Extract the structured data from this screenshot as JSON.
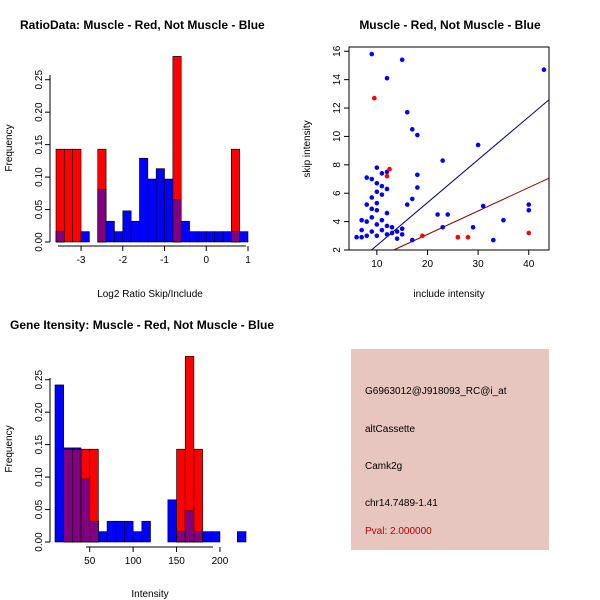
{
  "colors": {
    "muscle": "#ff0000",
    "not_muscle": "#0000ff",
    "overlap": "#800080",
    "panel_bg": "#e6c6bf",
    "pval_text": "#c00000"
  },
  "chart_data": [
    {
      "id": "ratio",
      "type": "histogram",
      "title": "RatioData: Muscle - Red, Not Muscle - Blue",
      "xlabel": "Log2 Ratio Skip/Include",
      "ylabel": "Frequency",
      "xlim": [
        -3.6,
        1.0
      ],
      "ylim": [
        0,
        0.285
      ],
      "xticks": [
        "-3",
        "-2",
        "-1",
        "0",
        "1"
      ],
      "yticks": [
        "0.00",
        "0.05",
        "0.10",
        "0.15",
        "0.20",
        "0.25"
      ],
      "bin_start": -3.6,
      "bin_width": 0.2,
      "series": [
        {
          "name": "Not Muscle",
          "color": "#0000ff",
          "values": [
            0.016,
            0.0,
            0.0,
            0.016,
            0.0,
            0.081,
            0.032,
            0.016,
            0.048,
            0.032,
            0.129,
            0.097,
            0.113,
            0.097,
            0.065,
            0.032,
            0.016,
            0.016,
            0.016,
            0.016,
            0.016,
            0.016,
            0.016
          ]
        },
        {
          "name": "Muscle",
          "color": "#ff0000",
          "values": [
            0.143,
            0.143,
            0.143,
            0.0,
            0.0,
            0.143,
            0.0,
            0.0,
            0.0,
            0.0,
            0.0,
            0.0,
            0.0,
            0.0,
            0.286,
            0.0,
            0.0,
            0.0,
            0.0,
            0.0,
            0.0,
            0.143,
            0.0
          ]
        }
      ]
    },
    {
      "id": "scatter",
      "type": "scatter",
      "title": "Muscle - Red, Not Muscle - Blue",
      "xlabel": "include intensity",
      "ylabel": "skip intensity",
      "xlim": [
        4.5,
        44
      ],
      "ylim": [
        2,
        16.3
      ],
      "xticks": [
        10,
        20,
        30,
        40
      ],
      "yticks": [
        2,
        4,
        6,
        8,
        10,
        12,
        14,
        16
      ],
      "series": [
        {
          "name": "Not Muscle",
          "color": "#0000ff",
          "points": [
            [
              9,
              15.8
            ],
            [
              15,
              15.4
            ],
            [
              12,
              14.1
            ],
            [
              16,
              11.7
            ],
            [
              17,
              10.5
            ],
            [
              18,
              10.1
            ],
            [
              30,
              9.4
            ],
            [
              23,
              8.3
            ],
            [
              8,
              7.1
            ],
            [
              9,
              7.0
            ],
            [
              10,
              7.8
            ],
            [
              11,
              7.4
            ],
            [
              12,
              7.5
            ],
            [
              18,
              7.3
            ],
            [
              10,
              6.7
            ],
            [
              11,
              6.5
            ],
            [
              12,
              6.3
            ],
            [
              18,
              6.4
            ],
            [
              10,
              6.1
            ],
            [
              11,
              5.9
            ],
            [
              9,
              5.7
            ],
            [
              10,
              5.3
            ],
            [
              17,
              5.6
            ],
            [
              16,
              5.2
            ],
            [
              31,
              5.1
            ],
            [
              40,
              5.2
            ],
            [
              8,
              5.2
            ],
            [
              9,
              4.9
            ],
            [
              10,
              4.8
            ],
            [
              12,
              4.6
            ],
            [
              22,
              4.5
            ],
            [
              24,
              4.5
            ],
            [
              40,
              4.8
            ],
            [
              35,
              4.1
            ],
            [
              7,
              4.1
            ],
            [
              8,
              4.0
            ],
            [
              9,
              4.3
            ],
            [
              11,
              4.1
            ],
            [
              10,
              3.8
            ],
            [
              12,
              3.7
            ],
            [
              13,
              3.6
            ],
            [
              15,
              3.5
            ],
            [
              23,
              3.6
            ],
            [
              29,
              3.6
            ],
            [
              7,
              3.4
            ],
            [
              9,
              3.3
            ],
            [
              11,
              3.4
            ],
            [
              13,
              3.2
            ],
            [
              14,
              3.3
            ],
            [
              15,
              3.1
            ],
            [
              6,
              2.9
            ],
            [
              7,
              2.9
            ],
            [
              8,
              3.0
            ],
            [
              10,
              3.0
            ],
            [
              12,
              3.1
            ],
            [
              14,
              2.8
            ],
            [
              17,
              2.7
            ],
            [
              26,
              2.9
            ],
            [
              33,
              2.7
            ],
            [
              43,
              14.7
            ]
          ]
        },
        {
          "name": "Muscle",
          "color": "#ff0000",
          "points": [
            [
              9.5,
              12.7
            ],
            [
              12.5,
              7.7
            ],
            [
              12,
              7.2
            ],
            [
              19,
              3.0
            ],
            [
              26,
              2.9
            ],
            [
              28,
              2.9
            ],
            [
              40,
              3.2
            ]
          ]
        }
      ],
      "lines": [
        {
          "color": "#00008b",
          "slope": 0.302,
          "intercept": -0.7
        },
        {
          "color": "#8b0000",
          "slope": 0.165,
          "intercept": -0.2
        }
      ]
    },
    {
      "id": "intensity",
      "type": "histogram",
      "title": "Gene Itensity: Muscle - Red, Not Muscle - Blue",
      "xlabel": "Intensity",
      "ylabel": "Frequency",
      "xlim": [
        10,
        230
      ],
      "ylim": [
        0,
        0.285
      ],
      "xticks": [
        "50",
        "100",
        "150",
        "200"
      ],
      "yticks": [
        "0.00",
        "0.05",
        "0.10",
        "0.15",
        "0.20",
        "0.25"
      ],
      "bin_start": 10,
      "bin_width": 10,
      "series": [
        {
          "name": "Not Muscle",
          "color": "#0000ff",
          "values": [
            0.242,
            0.145,
            0.145,
            0.097,
            0.032,
            0.016,
            0.032,
            0.032,
            0.032,
            0.016,
            0.032,
            0.0,
            0.0,
            0.065,
            0.016,
            0.048,
            0.016,
            0.016,
            0.016,
            0.0,
            0.0,
            0.016
          ]
        },
        {
          "name": "Muscle",
          "color": "#ff0000",
          "values": [
            0.0,
            0.143,
            0.143,
            0.143,
            0.143,
            0.0,
            0.0,
            0.0,
            0.0,
            0.0,
            0.0,
            0.0,
            0.0,
            0.0,
            0.143,
            0.286,
            0.143,
            0.0,
            0.0,
            0.0,
            0.0,
            0.0
          ]
        }
      ]
    }
  ],
  "info": {
    "probe_id": "G6963012@J918093_RC@i_at",
    "event_type": "altCassette",
    "gene": "Camk2g",
    "location": "chr14.7489-1.41",
    "pval": "Pval: 2.000000"
  }
}
